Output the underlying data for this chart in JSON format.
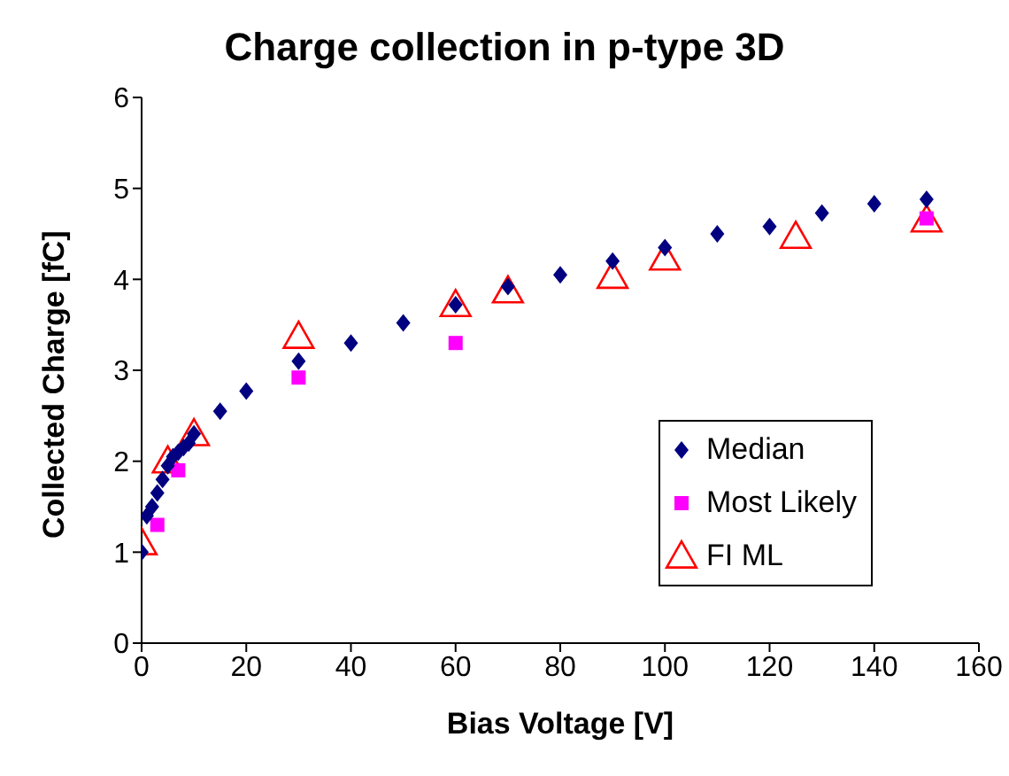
{
  "chart_data": {
    "type": "scatter",
    "title": "Charge collection in p-type 3D",
    "xlabel": "Bias Voltage [V]",
    "ylabel": "Collected Charge [fC]",
    "xlim": [
      0,
      160
    ],
    "xticks": [
      0,
      20,
      40,
      60,
      80,
      100,
      120,
      140,
      160
    ],
    "ylim": [
      0,
      6
    ],
    "yticks": [
      0,
      1,
      2,
      3,
      4,
      5,
      6
    ],
    "legend": "bottom right",
    "grid": false,
    "series": [
      {
        "name": "Median",
        "color": "#000080",
        "marker": "diamond",
        "x": [
          0,
          1,
          2,
          3,
          4,
          5,
          6,
          7,
          8,
          9,
          10,
          15,
          20,
          30,
          40,
          50,
          60,
          70,
          80,
          90,
          100,
          110,
          120,
          130,
          140,
          150
        ],
        "values": [
          1.0,
          1.4,
          1.5,
          1.65,
          1.8,
          1.95,
          2.05,
          2.1,
          2.15,
          2.2,
          2.3,
          2.55,
          2.77,
          3.1,
          3.3,
          3.52,
          3.72,
          3.92,
          4.05,
          4.2,
          4.35,
          4.5,
          4.58,
          4.73,
          4.83,
          4.88
        ]
      },
      {
        "name": "Most Likely",
        "color": "#ff00ff",
        "marker": "square",
        "x": [
          3,
          7,
          30,
          60,
          150
        ],
        "values": [
          1.3,
          1.9,
          2.92,
          3.3,
          4.67
        ]
      },
      {
        "name": "FI ML",
        "color": "#ff0000",
        "marker": "triangle",
        "x": [
          0,
          5,
          10,
          30,
          60,
          70,
          90,
          100,
          125,
          150
        ],
        "values": [
          1.1,
          2.0,
          2.3,
          3.37,
          3.72,
          3.87,
          4.03,
          4.23,
          4.47,
          4.65
        ]
      }
    ]
  }
}
